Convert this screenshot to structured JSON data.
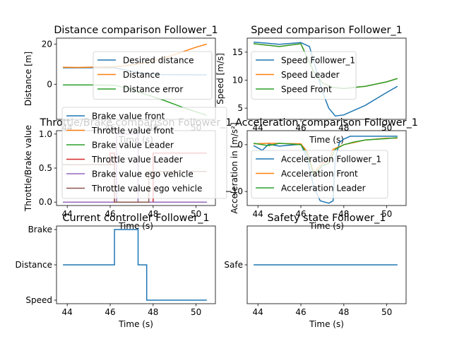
{
  "colors": {
    "c0": "#1f77b4",
    "c1": "#ff7f0e",
    "c2": "#2ca02c",
    "c3": "#d62728",
    "c4": "#9467bd",
    "c5": "#8c564b"
  },
  "chart_data": [
    {
      "id": "p1",
      "type": "line",
      "title": "Distance comparison Follower_1",
      "xlabel": "Time (s)",
      "ylabel": "Distance [m]",
      "xlim": [
        43.5,
        50.9
      ],
      "ylim": [
        -17.5,
        23
      ],
      "xticks": [
        44,
        46,
        48,
        50
      ],
      "yticks": [
        0,
        20
      ],
      "ytick_labels": [
        "0",
        "20"
      ],
      "legend": "center-right",
      "series": [
        {
          "name": "Desired distance",
          "color": "c0",
          "points": [
            [
              43.8,
              8.2
            ],
            [
              44.5,
              8.2
            ],
            [
              45.5,
              8.3
            ],
            [
              46.2,
              8.2
            ],
            [
              46.5,
              7.5
            ],
            [
              47.5,
              5.5
            ],
            [
              48.5,
              4.8
            ],
            [
              50.5,
              4.7
            ]
          ]
        },
        {
          "name": "Distance",
          "color": "c1",
          "points": [
            [
              43.8,
              8.5
            ],
            [
              44.5,
              8.4
            ],
            [
              45.5,
              8.6
            ],
            [
              46.2,
              8.7
            ],
            [
              47.0,
              9.6
            ],
            [
              48.0,
              11.5
            ],
            [
              49.0,
              14.8
            ],
            [
              50.0,
              18.5
            ],
            [
              50.5,
              20.0
            ]
          ]
        },
        {
          "name": "Distance error",
          "color": "c2",
          "points": [
            [
              43.8,
              -0.3
            ],
            [
              45.0,
              -0.3
            ],
            [
              46.2,
              -0.5
            ],
            [
              46.8,
              -2.0
            ],
            [
              47.5,
              -4.5
            ],
            [
              48.5,
              -8.0
            ],
            [
              49.5,
              -12.0
            ],
            [
              50.5,
              -15.5
            ]
          ]
        }
      ]
    },
    {
      "id": "p2",
      "type": "line",
      "title": "Speed comparison Follower_1",
      "xlabel": "Time (s)",
      "ylabel": "Speed [m/s]",
      "xlim": [
        43.5,
        50.9
      ],
      "ylim": [
        3,
        17.5
      ],
      "xticks": [
        44,
        46,
        48,
        50
      ],
      "yticks": [
        5,
        10,
        15
      ],
      "ytick_labels": [
        "5",
        "10",
        "15"
      ],
      "legend": "center-left",
      "series": [
        {
          "name": "Speed Follower_1",
          "color": "c0",
          "points": [
            [
              43.8,
              16.8
            ],
            [
              45.0,
              16.4
            ],
            [
              46.0,
              16.7
            ],
            [
              46.4,
              16.0
            ],
            [
              46.7,
              12.0
            ],
            [
              47.0,
              8.0
            ],
            [
              47.3,
              5.0
            ],
            [
              47.6,
              3.6
            ],
            [
              48.0,
              3.8
            ],
            [
              49.0,
              5.5
            ],
            [
              50.0,
              7.8
            ],
            [
              50.5,
              8.9
            ]
          ]
        },
        {
          "name": "Speed Leader",
          "color": "c1",
          "points": [
            [
              43.8,
              16.5
            ],
            [
              45.0,
              16.0
            ],
            [
              46.0,
              16.5
            ],
            [
              46.3,
              14.0
            ],
            [
              46.6,
              11.5
            ],
            [
              47.0,
              9.5
            ],
            [
              47.5,
              8.7
            ],
            [
              48.0,
              8.5
            ],
            [
              49.0,
              8.9
            ],
            [
              50.0,
              9.7
            ],
            [
              50.5,
              10.3
            ]
          ]
        },
        {
          "name": "Speed Front",
          "color": "c2",
          "points": [
            [
              43.8,
              16.5
            ],
            [
              45.0,
              16.0
            ],
            [
              46.0,
              16.5
            ],
            [
              46.3,
              14.0
            ],
            [
              46.6,
              11.5
            ],
            [
              47.0,
              9.5
            ],
            [
              47.5,
              8.7
            ],
            [
              48.0,
              8.5
            ],
            [
              49.0,
              8.9
            ],
            [
              50.0,
              9.7
            ],
            [
              50.5,
              10.3
            ]
          ]
        }
      ]
    },
    {
      "id": "p3",
      "type": "line",
      "title": "Throttle/Brake comparison Follower_1",
      "xlabel": "Time (s)",
      "ylabel": "Throttle/Brake value",
      "xlim": [
        43.5,
        50.9
      ],
      "ylim": [
        -0.05,
        1.05
      ],
      "xticks": [
        44,
        46,
        48,
        50
      ],
      "yticks": [
        0,
        0.5,
        1
      ],
      "ytick_labels": [
        "0.0",
        "0.5",
        "1.0"
      ],
      "legend": "upper-left",
      "series": [
        {
          "name": "Brake value front",
          "color": "c0",
          "points": [
            [
              43.8,
              0
            ],
            [
              50.5,
              0
            ]
          ]
        },
        {
          "name": "Throttle value front",
          "color": "c1",
          "points": [
            [
              43.8,
              0.55
            ],
            [
              46.0,
              0.55
            ],
            [
              46.0,
              0.72
            ],
            [
              46.2,
              0.72
            ],
            [
              46.2,
              0
            ],
            [
              48.0,
              0
            ],
            [
              48.0,
              0.72
            ],
            [
              50.5,
              0.72
            ]
          ]
        },
        {
          "name": "Brake value Leader",
          "color": "c2",
          "points": [
            [
              43.8,
              0
            ],
            [
              50.5,
              0
            ]
          ]
        },
        {
          "name": "Throttle value Leader",
          "color": "c3",
          "points": [
            [
              43.8,
              0.55
            ],
            [
              46.0,
              0.55
            ],
            [
              46.0,
              0.72
            ],
            [
              46.2,
              0.72
            ],
            [
              46.2,
              0
            ],
            [
              48.0,
              0
            ],
            [
              48.0,
              0.72
            ],
            [
              50.5,
              0.72
            ]
          ]
        },
        {
          "name": "Brake value ego vehicle",
          "color": "c4",
          "points": [
            [
              43.8,
              0
            ],
            [
              46.3,
              0
            ],
            [
              46.3,
              1.0
            ],
            [
              47.3,
              1.0
            ],
            [
              47.3,
              0
            ],
            [
              50.5,
              0
            ]
          ]
        },
        {
          "name": "Throttle value ego vehicle",
          "color": "c5",
          "points": [
            [
              43.8,
              0.55
            ],
            [
              46.2,
              0.55
            ],
            [
              46.2,
              0
            ],
            [
              47.8,
              0
            ],
            [
              47.8,
              0.45
            ],
            [
              50.5,
              0.45
            ]
          ]
        }
      ]
    },
    {
      "id": "p4",
      "type": "line",
      "title": "Acceleration comparison Follower_1",
      "xlabel": "Time (s)",
      "ylabel": "Acceleration in [m/s²]",
      "xlim": [
        43.5,
        50.9
      ],
      "ylim": [
        -13,
        3
      ],
      "xticks": [
        44,
        46,
        48,
        50
      ],
      "yticks": [
        -10,
        0
      ],
      "ytick_labels": [
        "−10",
        "0"
      ],
      "legend": "center-left",
      "series": [
        {
          "name": "Acceleration Follower_1",
          "color": "c0",
          "points": [
            [
              43.8,
              -0.2
            ],
            [
              44.2,
              -1.2
            ],
            [
              44.5,
              0.1
            ],
            [
              45.0,
              -0.3
            ],
            [
              46.0,
              0.1
            ],
            [
              46.3,
              -3.0
            ],
            [
              46.6,
              -9.0
            ],
            [
              46.9,
              -12.0
            ],
            [
              47.3,
              -12.5
            ],
            [
              47.5,
              -12.0
            ],
            [
              47.6,
              -3.0
            ],
            [
              47.8,
              0.5
            ],
            [
              48.0,
              1.2
            ],
            [
              48.3,
              1.8
            ],
            [
              50.5,
              1.8
            ]
          ]
        },
        {
          "name": "Acceleration Front",
          "color": "c1",
          "points": [
            [
              43.8,
              0.2
            ],
            [
              44.5,
              0.3
            ],
            [
              46.0,
              0.2
            ],
            [
              46.3,
              -1.5
            ],
            [
              46.6,
              -6.0
            ],
            [
              47.0,
              -4.0
            ],
            [
              47.3,
              -3.5
            ],
            [
              47.5,
              -1.0
            ],
            [
              48.0,
              0.0
            ],
            [
              48.5,
              0.5
            ],
            [
              49.0,
              1.0
            ],
            [
              50.0,
              1.4
            ],
            [
              50.5,
              1.4
            ]
          ]
        },
        {
          "name": "Acceleration Leader",
          "color": "c2",
          "points": [
            [
              43.8,
              0.3
            ],
            [
              44.5,
              -0.2
            ],
            [
              45.0,
              0.3
            ],
            [
              46.0,
              0.0
            ],
            [
              46.3,
              -2.0
            ],
            [
              46.6,
              -6.5
            ],
            [
              47.0,
              -4.5
            ],
            [
              47.3,
              -4.0
            ],
            [
              47.6,
              -1.0
            ],
            [
              48.0,
              0.0
            ],
            [
              48.5,
              0.6
            ],
            [
              49.0,
              1.0
            ],
            [
              50.0,
              1.3
            ],
            [
              50.5,
              1.5
            ]
          ]
        }
      ]
    },
    {
      "id": "p5",
      "type": "line",
      "title": "Current controller Follower_1",
      "xlabel": "Time (s)",
      "ylabel": "",
      "xlim": [
        43.5,
        50.9
      ],
      "ylim": [
        -0.1,
        2.1
      ],
      "xticks": [
        44,
        46,
        48,
        50
      ],
      "yticks": [
        0,
        1,
        2
      ],
      "ytick_labels": [
        "Speed",
        "Distance",
        "Brake"
      ],
      "legend": "none",
      "series": [
        {
          "color": "c0",
          "points": [
            [
              43.8,
              1
            ],
            [
              46.2,
              1
            ],
            [
              46.2,
              2
            ],
            [
              47.3,
              2
            ],
            [
              47.3,
              1
            ],
            [
              47.7,
              1
            ],
            [
              47.7,
              0
            ],
            [
              50.5,
              0
            ]
          ]
        }
      ]
    },
    {
      "id": "p6",
      "type": "line",
      "title": "Safety state Follower_1",
      "xlabel": "Time (s)",
      "ylabel": "",
      "xlim": [
        43.5,
        50.9
      ],
      "ylim": [
        -0.055,
        0.055
      ],
      "xticks": [
        44,
        46,
        48,
        50
      ],
      "yticks": [
        0
      ],
      "ytick_labels": [
        "Safe"
      ],
      "legend": "none",
      "series": [
        {
          "color": "c0",
          "points": [
            [
              43.8,
              0
            ],
            [
              50.5,
              0
            ]
          ]
        }
      ]
    }
  ]
}
